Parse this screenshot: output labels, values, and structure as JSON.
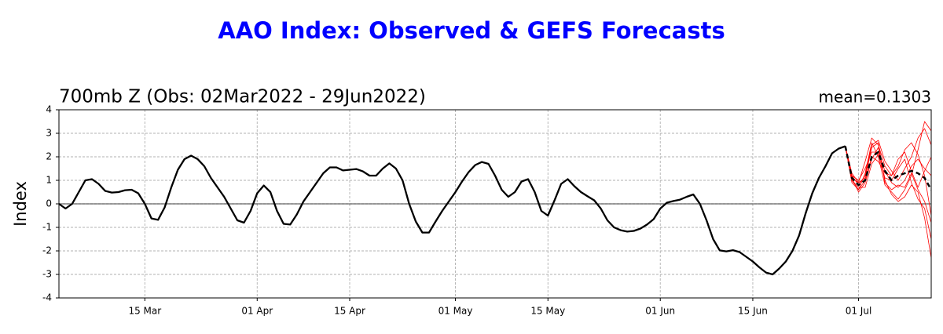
{
  "chart_data": {
    "type": "line",
    "title": "AAO Index: Observed & GEFS Forecasts",
    "subtitle": "700mb Z (Obs: 02Mar2022 - 29Jun2022)",
    "annotation": "mean=0.1303",
    "y_label": "Index",
    "xlim": [
      61,
      193
    ],
    "xticks": [
      {
        "value": 74,
        "label": "15 Mar"
      },
      {
        "value": 91,
        "label": "01 Apr"
      },
      {
        "value": 105,
        "label": "15 Apr"
      },
      {
        "value": 121,
        "label": "01 May"
      },
      {
        "value": 135,
        "label": "15 May"
      },
      {
        "value": 152,
        "label": "01 Jun"
      },
      {
        "value": 166,
        "label": "15 Jun"
      },
      {
        "value": 182,
        "label": "01 Jul"
      }
    ],
    "ylim": [
      -4,
      4
    ],
    "yticks": [
      -4,
      -3,
      -2,
      -1,
      0,
      1,
      2,
      3,
      4
    ],
    "grid": true,
    "zero_line": true,
    "series": [
      {
        "color": "#ff0000",
        "style": "thin",
        "x": [
          180,
          181,
          182,
          183,
          184,
          185,
          186,
          187,
          188,
          189,
          190,
          191,
          192,
          193
        ],
        "values": [
          2.45,
          1.0,
          0.6,
          1.3,
          2.6,
          2.0,
          0.8,
          0.5,
          0.2,
          0.6,
          1.2,
          2.3,
          3.5,
          3.1
        ]
      },
      {
        "color": "#ff0000",
        "style": "thin",
        "x": [
          180,
          181,
          182,
          183,
          184,
          185,
          186,
          187,
          188,
          189,
          190,
          191,
          192,
          193
        ],
        "values": [
          2.45,
          1.3,
          0.9,
          1.8,
          2.8,
          2.5,
          1.6,
          1.2,
          1.6,
          2.3,
          2.6,
          2.1,
          1.2,
          -0.5
        ]
      },
      {
        "color": "#ff0000",
        "style": "thin",
        "x": [
          180,
          181,
          182,
          183,
          184,
          185,
          186,
          187,
          188,
          189,
          190,
          191,
          192,
          193
        ],
        "values": [
          2.45,
          1.1,
          0.5,
          0.9,
          1.9,
          2.4,
          1.0,
          0.4,
          0.1,
          0.3,
          0.8,
          0.5,
          -0.6,
          -2.3
        ]
      },
      {
        "color": "#ff0000",
        "style": "thin",
        "x": [
          180,
          181,
          182,
          183,
          184,
          185,
          186,
          187,
          188,
          189,
          190,
          191,
          192,
          193
        ],
        "values": [
          2.45,
          1.2,
          0.8,
          1.2,
          2.5,
          2.7,
          1.8,
          1.4,
          1.0,
          1.5,
          2.0,
          2.8,
          3.2,
          2.5
        ]
      },
      {
        "color": "#ff0000",
        "style": "thin",
        "x": [
          180,
          181,
          182,
          183,
          184,
          185,
          186,
          187,
          188,
          189,
          190,
          191,
          192,
          193
        ],
        "values": [
          2.45,
          1.0,
          0.7,
          0.7,
          1.7,
          2.1,
          1.1,
          1.0,
          1.5,
          1.9,
          0.9,
          0.2,
          -0.2,
          -1.5
        ]
      },
      {
        "color": "#ff0000",
        "style": "thin",
        "x": [
          180,
          181,
          182,
          183,
          184,
          185,
          186,
          187,
          188,
          189,
          190,
          191,
          192,
          193
        ],
        "values": [
          2.45,
          1.2,
          1.0,
          1.5,
          2.2,
          2.2,
          1.4,
          0.9,
          0.7,
          1.0,
          1.6,
          1.9,
          1.5,
          1.2
        ]
      },
      {
        "color": "#ff0000",
        "style": "thin",
        "x": [
          180,
          181,
          182,
          183,
          184,
          185,
          186,
          187,
          188,
          189,
          190,
          191,
          192,
          193
        ],
        "values": [
          2.45,
          0.9,
          0.6,
          1.0,
          2.0,
          1.8,
          1.3,
          1.2,
          1.9,
          2.2,
          1.4,
          0.7,
          1.4,
          2.0
        ]
      },
      {
        "color": "#ff0000",
        "style": "thin",
        "x": [
          180,
          181,
          182,
          183,
          184,
          185,
          186,
          187,
          188,
          189,
          190,
          191,
          192,
          193
        ],
        "values": [
          2.45,
          1.1,
          0.9,
          1.1,
          2.4,
          2.6,
          0.9,
          0.6,
          0.8,
          0.7,
          1.3,
          0.6,
          0.1,
          -0.8
        ]
      },
      {
        "color": "#000000",
        "style": "solid",
        "x": [
          61,
          62,
          63,
          64,
          65,
          66,
          67,
          68,
          69,
          70,
          71,
          72,
          73,
          74,
          75,
          76,
          77,
          78,
          79,
          80,
          81,
          82,
          83,
          84,
          85,
          86,
          87,
          88,
          89,
          90,
          91,
          92,
          93,
          94,
          95,
          96,
          97,
          98,
          99,
          100,
          101,
          102,
          103,
          104,
          105,
          106,
          107,
          108,
          109,
          110,
          111,
          112,
          113,
          114,
          115,
          116,
          117,
          118,
          119,
          120,
          121,
          122,
          123,
          124,
          125,
          126,
          127,
          128,
          129,
          130,
          131,
          132,
          133,
          134,
          135,
          136,
          137,
          138,
          139,
          140,
          141,
          142,
          143,
          144,
          145,
          146,
          147,
          148,
          149,
          150,
          151,
          152,
          153,
          154,
          155,
          156,
          157,
          158,
          159,
          160,
          161,
          162,
          163,
          164,
          165,
          166,
          167,
          168,
          169,
          170,
          171,
          172,
          173,
          174,
          175,
          176,
          177,
          178,
          179,
          180
        ],
        "values": [
          0.0,
          -0.2,
          0.0,
          0.5,
          1.0,
          1.05,
          0.85,
          0.55,
          0.48,
          0.5,
          0.58,
          0.6,
          0.45,
          0.0,
          -0.62,
          -0.68,
          -0.15,
          0.7,
          1.45,
          1.9,
          2.05,
          1.9,
          1.6,
          1.1,
          0.7,
          0.3,
          -0.2,
          -0.7,
          -0.8,
          -0.3,
          0.45,
          0.78,
          0.5,
          -0.3,
          -0.85,
          -0.88,
          -0.45,
          0.1,
          0.5,
          0.9,
          1.3,
          1.55,
          1.55,
          1.42,
          1.45,
          1.48,
          1.38,
          1.2,
          1.2,
          1.5,
          1.72,
          1.5,
          1.0,
          0.0,
          -0.75,
          -1.22,
          -1.22,
          -0.75,
          -0.3,
          0.1,
          0.5,
          0.95,
          1.35,
          1.65,
          1.78,
          1.7,
          1.2,
          0.6,
          0.3,
          0.5,
          0.95,
          1.05,
          0.5,
          -0.3,
          -0.5,
          0.15,
          0.85,
          1.05,
          0.75,
          0.5,
          0.32,
          0.15,
          -0.2,
          -0.7,
          -1.0,
          -1.12,
          -1.18,
          -1.15,
          -1.05,
          -0.88,
          -0.65,
          -0.2,
          0.05,
          0.12,
          0.18,
          0.3,
          0.4,
          0.0,
          -0.7,
          -1.5,
          -1.98,
          -2.02,
          -1.97,
          -2.05,
          -2.25,
          -2.45,
          -2.7,
          -2.92,
          -3.0,
          -2.75,
          -2.45,
          -2.0,
          -1.35,
          -0.4,
          0.45,
          1.1,
          1.6,
          2.15,
          2.35,
          2.45
        ]
      },
      {
        "color": "#000000",
        "style": "dashed",
        "x": [
          180,
          181,
          182,
          183,
          184,
          185,
          186,
          187,
          188,
          189,
          190,
          191,
          192,
          193
        ],
        "values": [
          2.45,
          1.1,
          0.8,
          1.0,
          2.0,
          2.2,
          1.4,
          1.0,
          1.2,
          1.3,
          1.4,
          1.3,
          1.1,
          0.6
        ]
      }
    ]
  }
}
